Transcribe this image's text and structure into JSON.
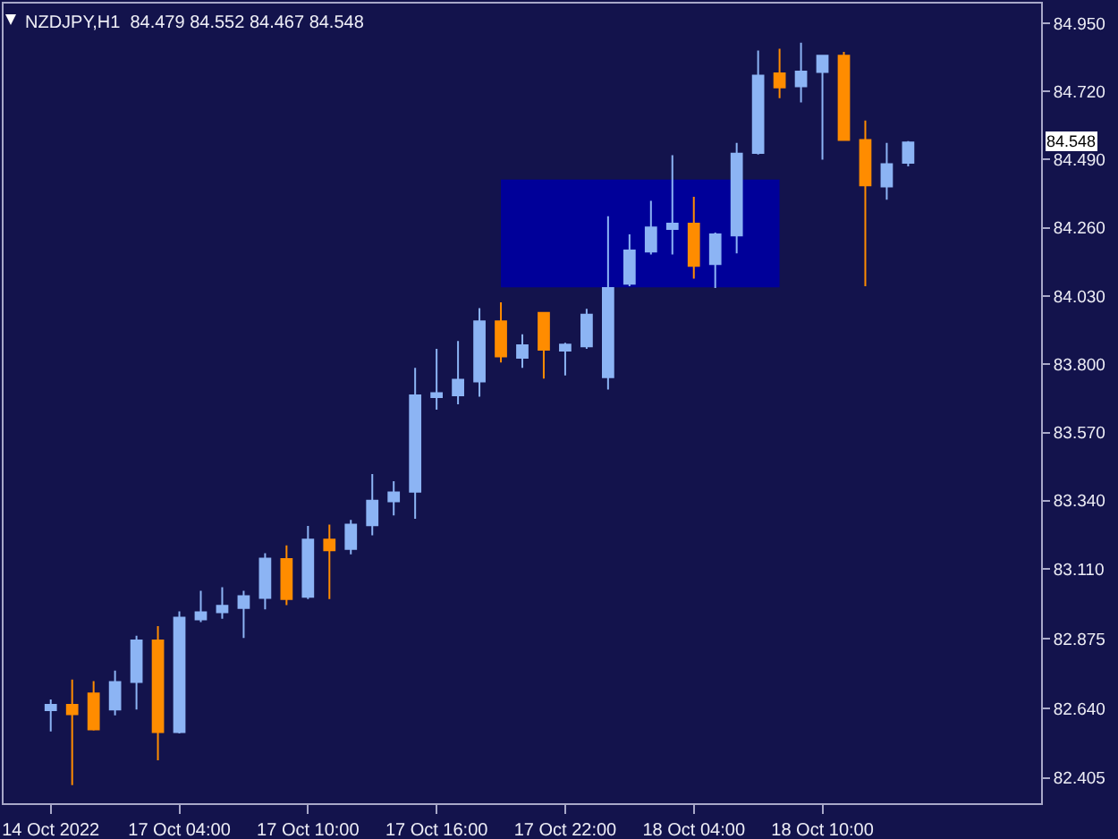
{
  "chart_data": {
    "type": "candlestick",
    "title": "NZDJPY,H1  84.479 84.552 84.467 84.548",
    "categories": [
      "14 Oct 2022",
      null,
      null,
      null,
      null,
      null,
      "17 Oct 04:00",
      null,
      null,
      null,
      null,
      null,
      "17 Oct 10:00",
      null,
      null,
      null,
      null,
      null,
      "17 Oct 16:00",
      null,
      null,
      null,
      null,
      null,
      "17 Oct 22:00",
      null,
      null,
      null,
      null,
      null,
      "18 Oct 04:00",
      null,
      null,
      null,
      null,
      null,
      "18 Oct 10:00",
      null,
      null,
      null,
      null,
      null,
      null,
      null,
      null,
      null,
      null
    ],
    "ohlc": [
      [
        82.634,
        82.67,
        82.562,
        82.652
      ],
      [
        82.652,
        82.737,
        82.381,
        82.62
      ],
      [
        82.69,
        82.732,
        82.565,
        82.569
      ],
      [
        82.636,
        82.767,
        82.616,
        82.729
      ],
      [
        82.729,
        82.885,
        82.636,
        82.869
      ],
      [
        82.869,
        82.917,
        82.465,
        82.56
      ],
      [
        82.56,
        82.967,
        82.555,
        82.946
      ],
      [
        82.94,
        83.036,
        82.931,
        82.964
      ],
      [
        82.964,
        83.048,
        82.942,
        82.986
      ],
      [
        82.978,
        83.036,
        82.877,
        83.018
      ],
      [
        83.012,
        83.163,
        82.974,
        83.145
      ],
      [
        83.143,
        83.189,
        82.988,
        83.008
      ],
      [
        83.016,
        83.255,
        83.008,
        83.209
      ],
      [
        83.209,
        83.259,
        83.008,
        83.173
      ],
      [
        83.177,
        83.275,
        83.159,
        83.259
      ],
      [
        83.257,
        83.43,
        83.223,
        83.34
      ],
      [
        83.338,
        83.406,
        83.29,
        83.368
      ],
      [
        83.37,
        83.788,
        83.279,
        83.695
      ],
      [
        83.689,
        83.852,
        83.647,
        83.703
      ],
      [
        83.695,
        83.878,
        83.665,
        83.748
      ],
      [
        83.742,
        83.989,
        83.691,
        83.945
      ],
      [
        83.945,
        84.009,
        83.806,
        83.826
      ],
      [
        83.822,
        83.901,
        83.788,
        83.864
      ],
      [
        83.973,
        83.975,
        83.752,
        83.849
      ],
      [
        83.846,
        83.872,
        83.762,
        83.866
      ],
      [
        83.86,
        83.987,
        83.852,
        83.967
      ],
      [
        83.756,
        84.299,
        83.715,
        84.057
      ],
      [
        84.071,
        84.238,
        84.063,
        84.184
      ],
      [
        84.18,
        84.351,
        84.17,
        84.261
      ],
      [
        84.256,
        84.505,
        84.17,
        84.274
      ],
      [
        84.274,
        84.365,
        84.089,
        84.132
      ],
      [
        84.138,
        84.244,
        84.057,
        84.238
      ],
      [
        84.234,
        84.546,
        84.174,
        84.51
      ],
      [
        84.512,
        84.858,
        84.507,
        84.773
      ],
      [
        84.781,
        84.864,
        84.697,
        84.733
      ],
      [
        84.737,
        84.884,
        84.683,
        84.787
      ],
      [
        84.785,
        84.842,
        84.49,
        84.84
      ],
      [
        84.84,
        84.853,
        84.554,
        84.556
      ],
      [
        84.556,
        84.622,
        84.063,
        84.403
      ],
      [
        84.399,
        84.546,
        84.355,
        84.475
      ],
      [
        84.479,
        84.552,
        84.467,
        84.548
      ],
      null,
      null,
      null,
      null,
      null,
      null
    ],
    "colors": [
      "#8cb4f4",
      "#ff8c00",
      "#ff8c00",
      "#8cb4f4",
      "#8cb4f4",
      "#ff8c00",
      "#8cb4f4",
      "#8cb4f4",
      "#8cb4f4",
      "#8cb4f4",
      "#8cb4f4",
      "#ff8c00",
      "#8cb4f4",
      "#ff8c00",
      "#8cb4f4",
      "#8cb4f4",
      "#8cb4f4",
      "#8cb4f4",
      "#8cb4f4",
      "#8cb4f4",
      "#8cb4f4",
      "#ff8c00",
      "#8cb4f4",
      "#ff8c00",
      "#8cb4f4",
      "#8cb4f4",
      "#8cb4f4",
      "#8cb4f4",
      "#8cb4f4",
      "#8cb4f4",
      "#ff8c00",
      "#8cb4f4",
      "#8cb4f4",
      "#8cb4f4",
      "#ff8c00",
      "#8cb4f4",
      "#8cb4f4",
      "#ff8c00",
      "#ff8c00",
      "#8cb4f4",
      "#8cb4f4",
      null,
      null,
      null,
      null,
      null,
      null
    ],
    "series": [
      {
        "type": "line",
        "color": "#000099",
        "values": [
          null,
          null,
          null,
          null,
          null,
          null,
          null,
          null,
          null,
          null,
          null,
          null,
          null,
          null,
          null,
          null,
          null,
          null,
          null,
          null,
          null,
          null,
          null,
          null,
          null,
          null,
          null,
          null,
          null,
          null,
          null,
          null,
          null,
          null,
          null,
          null,
          null,
          null,
          null,
          null,
          null,
          null,
          null,
          null,
          null,
          null,
          null
        ],
        "upper": [
          null,
          null,
          null,
          null,
          null,
          null,
          null,
          null,
          null,
          null,
          null,
          null,
          null,
          null,
          null,
          null,
          null,
          null,
          null,
          null,
          null,
          84.423,
          84.423,
          84.423,
          84.423,
          84.423,
          84.423,
          84.423,
          84.423,
          84.423,
          84.423,
          84.423,
          84.423,
          84.423,
          84.423,
          null,
          null,
          null,
          null,
          null,
          null,
          null,
          null,
          null,
          null,
          null,
          null
        ],
        "lower": [
          null,
          null,
          null,
          null,
          null,
          null,
          null,
          null,
          null,
          null,
          null,
          null,
          null,
          null,
          null,
          null,
          null,
          null,
          null,
          null,
          null,
          84.059,
          84.059,
          84.059,
          84.059,
          84.059,
          84.059,
          84.059,
          84.059,
          84.059,
          84.059,
          84.059,
          84.059,
          84.059,
          84.059,
          null,
          null,
          null,
          null,
          null,
          null,
          null,
          null,
          null,
          null,
          null,
          null
        ]
      }
    ],
    "ylim": [
      82.32,
      85.016
    ],
    "yticks": [
      82.405,
      {
        "value": 82.64,
        "label": "82.640"
      },
      82.875,
      {
        "value": 83.11,
        "label": "83.110"
      },
      {
        "value": 83.34,
        "label": "83.340"
      },
      {
        "value": 83.57,
        "label": "83.570"
      },
      {
        "value": 83.8,
        "label": "83.800"
      },
      {
        "value": 84.03,
        "label": "84.030"
      },
      {
        "value": 84.26,
        "label": "84.260"
      },
      {
        "value": 84.49,
        "label": "84.490"
      },
      {
        "value": 84.72,
        "label": "84.720"
      },
      {
        "value": 84.95,
        "label": "84.950"
      }
    ],
    "annotations": [
      {
        "text": "84.548",
        "y": 84.548
      }
    ]
  }
}
